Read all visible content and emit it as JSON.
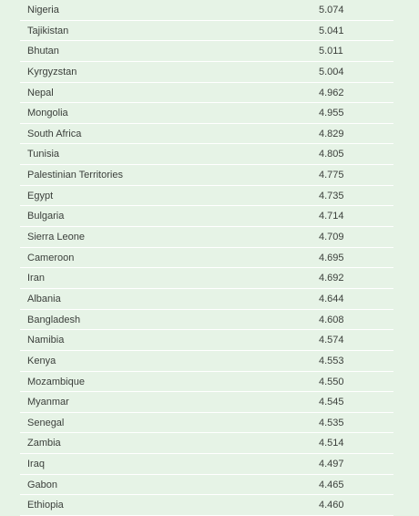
{
  "table": {
    "rows": [
      {
        "country": "Nigeria",
        "score": "5.074"
      },
      {
        "country": "Tajikistan",
        "score": "5.041"
      },
      {
        "country": "Bhutan",
        "score": "5.011"
      },
      {
        "country": "Kyrgyzstan",
        "score": "5.004"
      },
      {
        "country": "Nepal",
        "score": "4.962"
      },
      {
        "country": "Mongolia",
        "score": "4.955"
      },
      {
        "country": "South Africa",
        "score": "4.829"
      },
      {
        "country": "Tunisia",
        "score": "4.805"
      },
      {
        "country": "Palestinian Territories",
        "score": "4.775"
      },
      {
        "country": "Egypt",
        "score": "4.735"
      },
      {
        "country": "Bulgaria",
        "score": "4.714"
      },
      {
        "country": "Sierra Leone",
        "score": "4.709"
      },
      {
        "country": "Cameroon",
        "score": "4.695"
      },
      {
        "country": "Iran",
        "score": "4.692"
      },
      {
        "country": "Albania",
        "score": "4.644"
      },
      {
        "country": "Bangladesh",
        "score": "4.608"
      },
      {
        "country": "Namibia",
        "score": "4.574"
      },
      {
        "country": "Kenya",
        "score": "4.553"
      },
      {
        "country": "Mozambique",
        "score": "4.550"
      },
      {
        "country": "Myanmar",
        "score": "4.545"
      },
      {
        "country": "Senegal",
        "score": "4.535"
      },
      {
        "country": "Zambia",
        "score": "4.514"
      },
      {
        "country": "Iraq",
        "score": "4.497"
      },
      {
        "country": "Gabon",
        "score": "4.465"
      },
      {
        "country": "Ethiopia",
        "score": "4.460"
      }
    ]
  },
  "colors": {
    "background": "#e6f3e6",
    "divider": "#ffffff",
    "text": "#3b3f3b"
  }
}
